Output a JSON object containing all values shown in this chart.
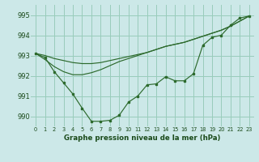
{
  "title": "Graphe pression niveau de la mer (hPa)",
  "bg_color": "#cce8e8",
  "grid_color": "#99ccbb",
  "line_color": "#2d6a2d",
  "x_labels": [
    "0",
    "1",
    "2",
    "3",
    "4",
    "5",
    "6",
    "7",
    "8",
    "9",
    "10",
    "11",
    "12",
    "13",
    "14",
    "15",
    "16",
    "17",
    "18",
    "19",
    "20",
    "21",
    "22",
    "23"
  ],
  "ylim": [
    989.5,
    995.5
  ],
  "yticks": [
    990,
    991,
    992,
    993,
    994,
    995
  ],
  "y_main": [
    993.1,
    992.9,
    992.2,
    991.65,
    991.1,
    990.4,
    989.75,
    989.75,
    989.8,
    990.05,
    990.7,
    991.0,
    991.55,
    991.6,
    991.95,
    991.75,
    991.75,
    992.1,
    993.5,
    993.9,
    994.0,
    994.5,
    994.85,
    994.95
  ],
  "y_smooth1": [
    993.1,
    993.0,
    992.85,
    992.75,
    992.65,
    992.6,
    992.6,
    992.65,
    992.75,
    992.85,
    992.95,
    993.05,
    993.15,
    993.3,
    993.45,
    993.55,
    993.65,
    993.8,
    993.95,
    994.1,
    994.25,
    994.45,
    994.7,
    994.95
  ],
  "y_smooth2": [
    993.1,
    992.8,
    992.45,
    992.2,
    992.05,
    992.05,
    992.15,
    992.3,
    992.5,
    992.7,
    992.85,
    993.0,
    993.15,
    993.3,
    993.45,
    993.55,
    993.65,
    993.8,
    993.95,
    994.1,
    994.25,
    994.45,
    994.7,
    994.95
  ]
}
